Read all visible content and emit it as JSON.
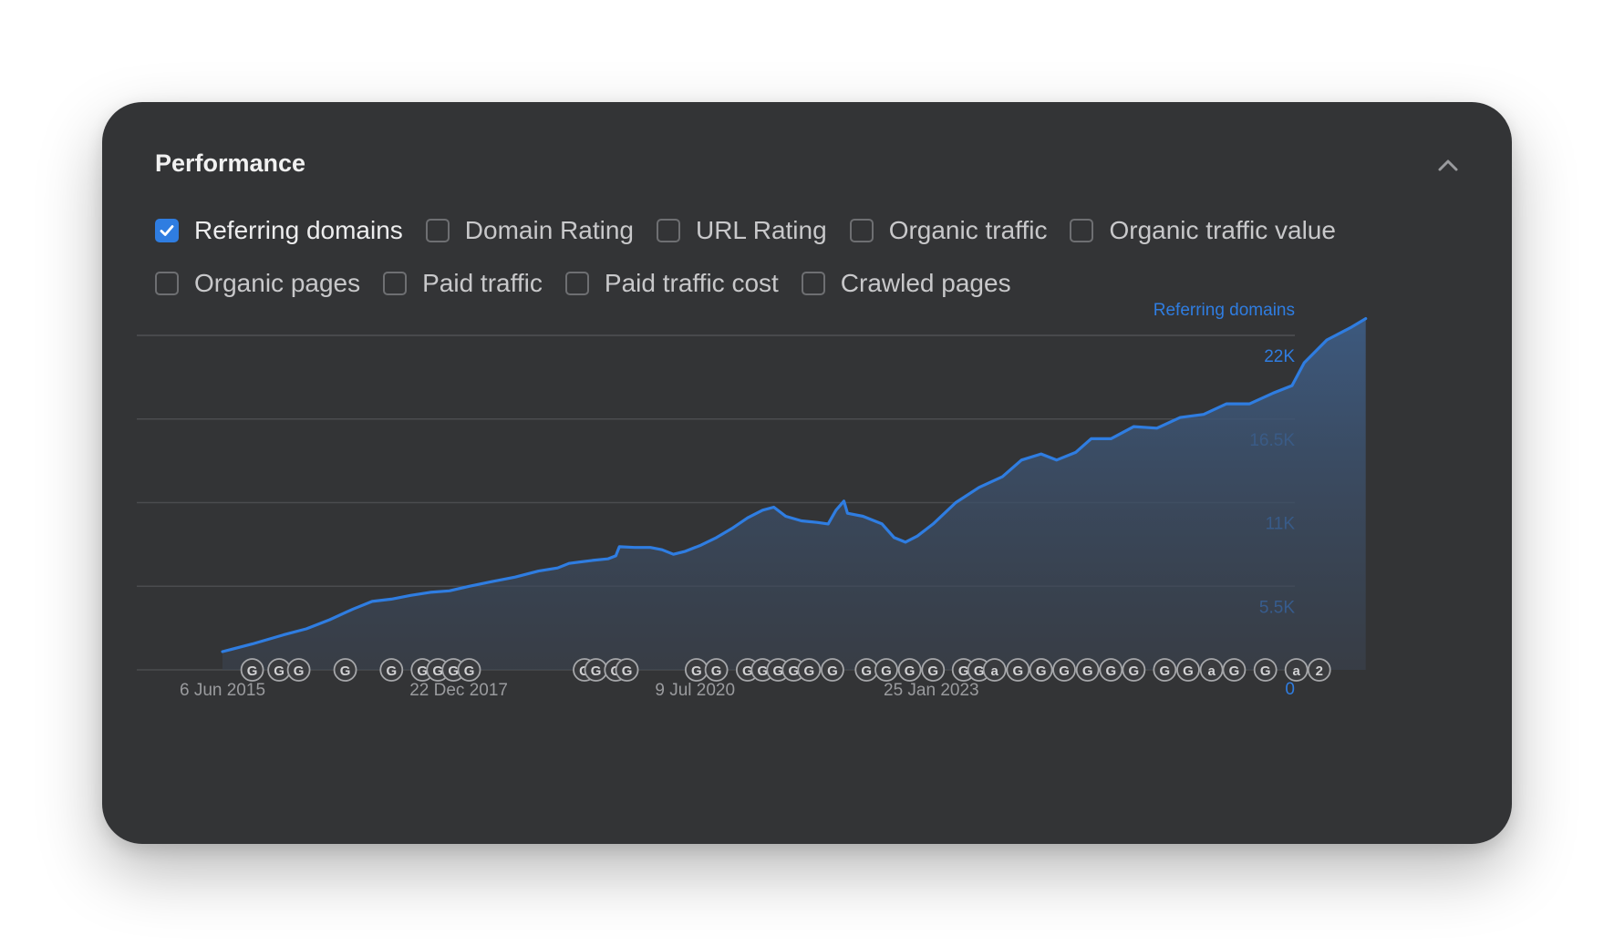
{
  "card": {
    "title": "Performance",
    "collapse_icon": "chevron-up-icon"
  },
  "options": {
    "rows": [
      [
        {
          "label": "Referring domains",
          "checked": true
        },
        {
          "label": "Domain Rating",
          "checked": false
        },
        {
          "label": "URL Rating",
          "checked": false
        },
        {
          "label": "Organic traffic",
          "checked": false
        },
        {
          "label": "Organic traffic value",
          "checked": false
        }
      ],
      [
        {
          "label": "Organic pages",
          "checked": false
        },
        {
          "label": "Paid traffic",
          "checked": false
        },
        {
          "label": "Paid traffic cost",
          "checked": false
        },
        {
          "label": "Crawled pages",
          "checked": false
        }
      ]
    ]
  },
  "colors": {
    "accent": "#2f7de1",
    "card_bg": "#333436",
    "grid": "#4b4c4f",
    "muted_text": "#9a9b9e"
  },
  "chart_data": {
    "type": "area",
    "series": [
      {
        "name": "Referring domains",
        "points": [
          [
            "2015-06-06",
            1200
          ],
          [
            "2015-10-01",
            1700
          ],
          [
            "2016-02-01",
            2300
          ],
          [
            "2016-05-01",
            2700
          ],
          [
            "2016-08-01",
            3300
          ],
          [
            "2016-11-01",
            4000
          ],
          [
            "2017-01-15",
            4500
          ],
          [
            "2017-04-01",
            4650
          ],
          [
            "2017-06-15",
            4900
          ],
          [
            "2017-09-01",
            5100
          ],
          [
            "2017-11-15",
            5200
          ],
          [
            "2018-02-01",
            5500
          ],
          [
            "2018-05-01",
            5800
          ],
          [
            "2018-08-01",
            6100
          ],
          [
            "2018-11-01",
            6500
          ],
          [
            "2019-01-15",
            6700
          ],
          [
            "2019-03-01",
            7000
          ],
          [
            "2019-06-01",
            7200
          ],
          [
            "2019-08-01",
            7300
          ],
          [
            "2019-09-01",
            7500
          ],
          [
            "2019-09-15",
            8100
          ],
          [
            "2019-11-15",
            8050
          ],
          [
            "2020-01-15",
            8050
          ],
          [
            "2020-03-01",
            7900
          ],
          [
            "2020-04-15",
            7600
          ],
          [
            "2020-06-01",
            7800
          ],
          [
            "2020-08-01",
            8200
          ],
          [
            "2020-10-01",
            8700
          ],
          [
            "2020-12-01",
            9300
          ],
          [
            "2021-02-01",
            10000
          ],
          [
            "2021-04-01",
            10500
          ],
          [
            "2021-05-15",
            10700
          ],
          [
            "2021-07-01",
            10100
          ],
          [
            "2021-09-01",
            9800
          ],
          [
            "2021-11-01",
            9700
          ],
          [
            "2021-12-15",
            9600
          ],
          [
            "2022-01-15",
            10500
          ],
          [
            "2022-02-15",
            11100
          ],
          [
            "2022-03-01",
            10300
          ],
          [
            "2022-05-01",
            10100
          ],
          [
            "2022-07-15",
            9600
          ],
          [
            "2022-09-01",
            8700
          ],
          [
            "2022-10-15",
            8400
          ],
          [
            "2022-12-01",
            8800
          ],
          [
            "2023-02-01",
            9600
          ],
          [
            "2023-05-01",
            11000
          ],
          [
            "2023-08-01",
            12000
          ],
          [
            "2023-11-01",
            12700
          ],
          [
            "2024-01-15",
            13800
          ],
          [
            "2024-04-01",
            14200
          ],
          [
            "2024-06-01",
            13800
          ],
          [
            "2024-08-15",
            14300
          ],
          [
            "2024-10-15",
            15200
          ],
          [
            "2025-01-01",
            15200
          ],
          [
            "2025-04-01",
            16000
          ],
          [
            "2025-07-01",
            15900
          ],
          [
            "2025-10-01",
            16600
          ],
          [
            "2026-01-01",
            16800
          ],
          [
            "2026-04-01",
            17500
          ],
          [
            "2026-07-01",
            17500
          ],
          [
            "2026-10-01",
            18200
          ],
          [
            "2026-12-15",
            18700
          ],
          [
            "2027-02-01",
            20200
          ],
          [
            "2027-05-01",
            21700
          ],
          [
            "2027-08-01",
            22500
          ],
          [
            "2027-10-01",
            23100
          ]
        ]
      }
    ],
    "y_axis": {
      "label": "Referring domains",
      "ticks": [
        "0",
        "5.5K",
        "11K",
        "16.5K",
        "22K"
      ],
      "range": [
        0,
        23500
      ],
      "position": "right"
    },
    "x_axis": {
      "ticks": [
        "6 Jun 2015",
        "22 Dec 2017",
        "9 Jul 2020",
        "25 Jan 2023"
      ],
      "range": [
        "2015-06-06",
        "2028-02-01"
      ]
    },
    "grid": true,
    "annotations": [
      {
        "date": "2015-10-01",
        "label": "G"
      },
      {
        "date": "2016-01-15",
        "label": "G"
      },
      {
        "date": "2016-04-01",
        "label": "G"
      },
      {
        "date": "2016-10-01",
        "label": "G"
      },
      {
        "date": "2017-04-01",
        "label": "G"
      },
      {
        "date": "2017-08-01",
        "label": "G"
      },
      {
        "date": "2017-10-01",
        "label": "G"
      },
      {
        "date": "2017-12-01",
        "label": "G"
      },
      {
        "date": "2018-02-01",
        "label": "G"
      },
      {
        "date": "2019-05-01",
        "label": "G"
      },
      {
        "date": "2019-06-15",
        "label": "G"
      },
      {
        "date": "2019-09-01",
        "label": "G"
      },
      {
        "date": "2019-10-15",
        "label": "G"
      },
      {
        "date": "2020-07-15",
        "label": "G"
      },
      {
        "date": "2020-10-01",
        "label": "G"
      },
      {
        "date": "2021-02-01",
        "label": "G"
      },
      {
        "date": "2021-04-01",
        "label": "G"
      },
      {
        "date": "2021-06-01",
        "label": "G"
      },
      {
        "date": "2021-08-01",
        "label": "G"
      },
      {
        "date": "2021-10-01",
        "label": "G"
      },
      {
        "date": "2022-01-01",
        "label": "G"
      },
      {
        "date": "2022-05-15",
        "label": "G"
      },
      {
        "date": "2022-08-01",
        "label": "G"
      },
      {
        "date": "2022-11-01",
        "label": "G"
      },
      {
        "date": "2023-02-01",
        "label": "G"
      },
      {
        "date": "2023-06-01",
        "label": "G"
      },
      {
        "date": "2023-08-01",
        "label": "G"
      },
      {
        "date": "2023-10-01",
        "label": "a"
      },
      {
        "date": "2024-01-01",
        "label": "G"
      },
      {
        "date": "2024-04-01",
        "label": "G"
      },
      {
        "date": "2024-07-01",
        "label": "G"
      },
      {
        "date": "2024-10-01",
        "label": "G"
      },
      {
        "date": "2025-01-01",
        "label": "G"
      },
      {
        "date": "2025-04-01",
        "label": "G"
      },
      {
        "date": "2025-08-01",
        "label": "G"
      },
      {
        "date": "2025-11-01",
        "label": "G"
      },
      {
        "date": "2026-02-01",
        "label": "a"
      },
      {
        "date": "2026-05-01",
        "label": "G"
      },
      {
        "date": "2026-09-01",
        "label": "G"
      },
      {
        "date": "2027-01-01",
        "label": "a"
      },
      {
        "date": "2027-04-01",
        "label": "2"
      }
    ]
  }
}
